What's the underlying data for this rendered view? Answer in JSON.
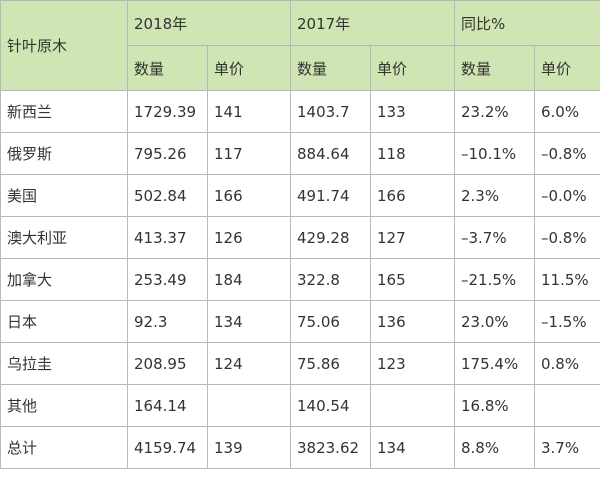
{
  "table": {
    "corner_label": "针叶原木",
    "year_headers": [
      "2018年",
      "2017年",
      "同比%"
    ],
    "sub_headers": [
      "数量",
      "单价",
      "数量",
      "单价",
      "数量",
      "单价"
    ],
    "rows": [
      {
        "label": "新西兰",
        "cells": [
          "1729.39",
          "141",
          "1403.7",
          "133",
          "23.2%",
          "6.0%"
        ]
      },
      {
        "label": "俄罗斯",
        "cells": [
          "795.26",
          "117",
          "884.64",
          "118",
          "–10.1%",
          "–0.8%"
        ]
      },
      {
        "label": "美国",
        "cells": [
          "502.84",
          "166",
          "491.74",
          "166",
          "2.3%",
          "–0.0%"
        ]
      },
      {
        "label": "澳大利亚",
        "cells": [
          "413.37",
          "126",
          "429.28",
          "127",
          "–3.7%",
          "–0.8%"
        ]
      },
      {
        "label": "加拿大",
        "cells": [
          "253.49",
          "184",
          "322.8",
          "165",
          "–21.5%",
          "11.5%"
        ]
      },
      {
        "label": "日本",
        "cells": [
          "92.3",
          "134",
          "75.06",
          "136",
          "23.0%",
          "–1.5%"
        ]
      },
      {
        "label": "乌拉圭",
        "cells": [
          "208.95",
          "124",
          "75.86",
          "123",
          "175.4%",
          "0.8%"
        ]
      },
      {
        "label": "其他",
        "cells": [
          "164.14",
          "",
          "140.54",
          "",
          "16.8%",
          ""
        ]
      },
      {
        "label": "总计",
        "cells": [
          "4159.74",
          "139",
          "3823.62",
          "134",
          "8.8%",
          "3.7%"
        ]
      }
    ]
  },
  "colors": {
    "header_bg": "#cfe5b3",
    "border": "#b8b8b8",
    "text": "#333333"
  }
}
